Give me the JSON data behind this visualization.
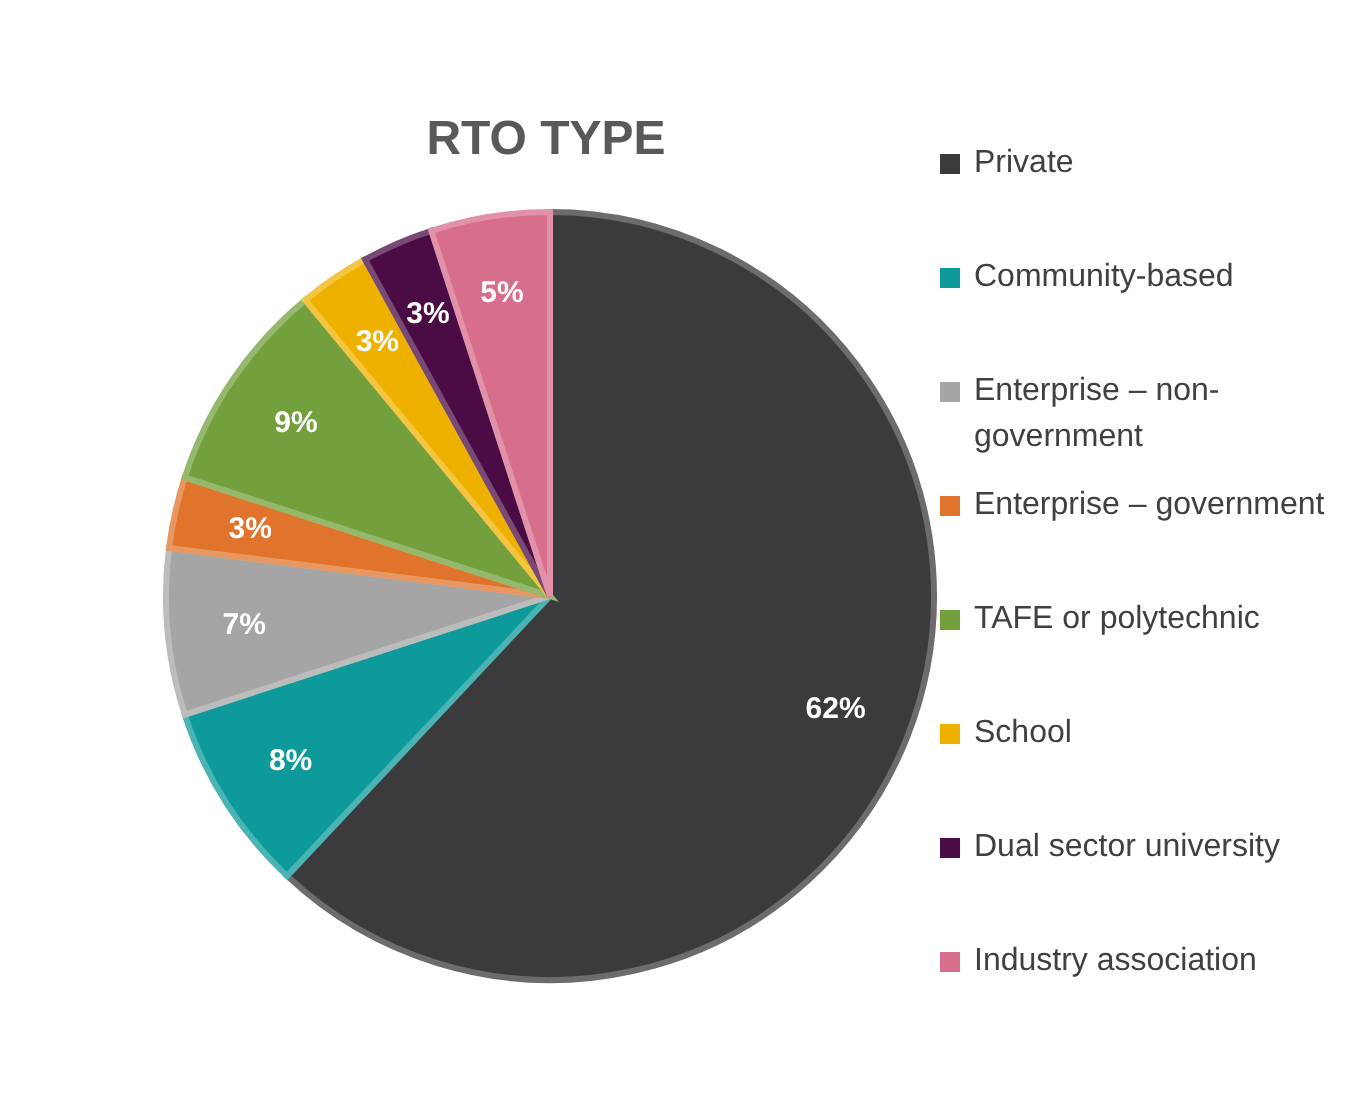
{
  "chart_data": {
    "type": "pie",
    "title": "RTO TYPE",
    "categories": [
      "Private",
      "Community-based",
      "Enterprise – non-government",
      "Enterprise – government",
      "TAFE or polytechnic",
      "School",
      "Dual sector university",
      "Industry association"
    ],
    "values": [
      62,
      8,
      7,
      3,
      9,
      3,
      3,
      5
    ],
    "value_labels": [
      "62%",
      "8%",
      "7%",
      "3%",
      "9%",
      "3%",
      "3%",
      "5%"
    ],
    "colors": [
      "#3b3b3d",
      "#0e9a9a",
      "#a5a5a5",
      "#e0742c",
      "#73a03c",
      "#efb100",
      "#4b0c45",
      "#d76e8c"
    ],
    "legend": "right"
  }
}
